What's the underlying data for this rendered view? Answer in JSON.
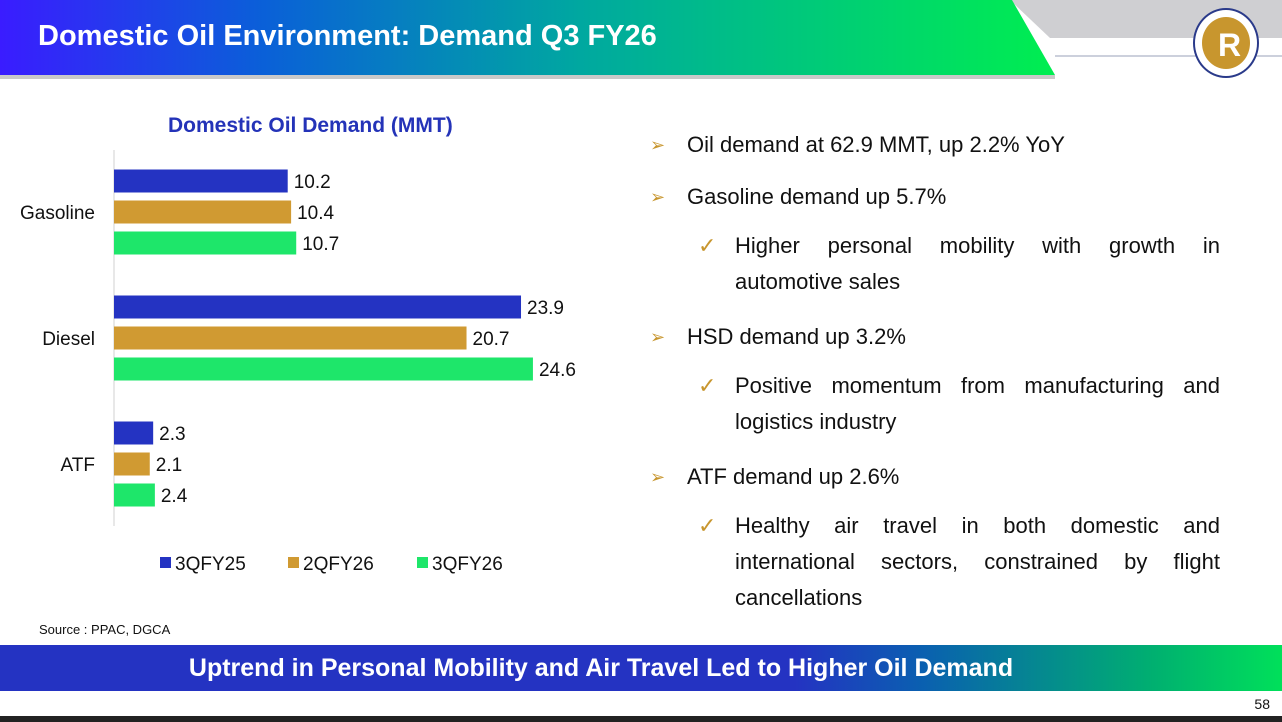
{
  "header": {
    "title": "Domestic Oil Environment: Demand Q3 FY26",
    "logo_icon": "reliance-logo"
  },
  "chart_data": {
    "type": "bar",
    "orientation": "horizontal",
    "title": "Domestic Oil Demand (MMT)",
    "categories": [
      "Gasoline",
      "Diesel",
      "ATF"
    ],
    "series": [
      {
        "name": "3QFY25",
        "color": "#2433c2",
        "values": [
          10.2,
          23.9,
          2.3
        ]
      },
      {
        "name": "2QFY26",
        "color": "#d09a32",
        "values": [
          10.4,
          20.7,
          2.1
        ]
      },
      {
        "name": "3QFY26",
        "color": "#1ee66a",
        "values": [
          10.7,
          24.6,
          2.4
        ]
      }
    ],
    "xlim": [
      0,
      25
    ],
    "legend": "bottom",
    "grid": false
  },
  "bullets": [
    {
      "text": "Oil demand at 62.9 MMT, up 2.2% YoY"
    },
    {
      "text": "Gasoline demand up 5.7%",
      "sub": "Higher personal mobility with growth in automotive sales"
    },
    {
      "text": "HSD demand up 3.2%",
      "sub": "Positive momentum from manufacturing and logistics industry"
    },
    {
      "text": "ATF demand up 2.6%",
      "sub": "Healthy air travel in both domestic and international sectors, constrained by flight cancellations"
    }
  ],
  "bullet_marker": "➢",
  "sub_marker": "✓",
  "source": "Source : PPAC, DGCA",
  "footer": "Uptrend in Personal Mobility and Air Travel Led to Higher Oil Demand",
  "page_number": "58"
}
